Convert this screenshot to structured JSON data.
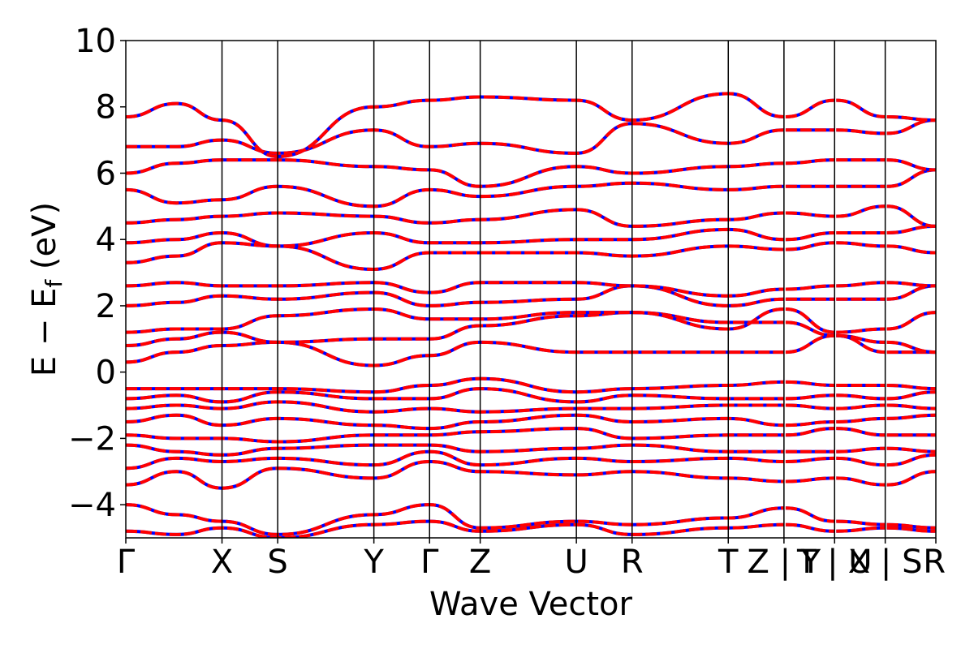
{
  "chart_data": {
    "type": "line",
    "xlabel": "Wave Vector",
    "ylabel": "E − E",
    "ylabel_sub": "f",
    "ylabel_unit": " (eV)",
    "ylim": [
      -5,
      10
    ],
    "yticks": [
      -4,
      -2,
      0,
      2,
      4,
      6,
      8,
      10
    ],
    "ytick_labels": [
      "−4",
      "−2",
      "0",
      "2",
      "4",
      "6",
      "8",
      "10"
    ],
    "xlim": [
      0,
      16
    ],
    "kpoints": [
      {
        "label": "Γ",
        "x": 0
      },
      {
        "label": "X",
        "x": 1.9
      },
      {
        "label": "S",
        "x": 3.0
      },
      {
        "label": "Y",
        "x": 4.9
      },
      {
        "label": "Γ",
        "x": 6.0
      },
      {
        "label": "Z",
        "x": 7.0
      },
      {
        "label": "U",
        "x": 8.9
      },
      {
        "label": "R",
        "x": 10.0
      },
      {
        "label": "T",
        "x": 11.9
      },
      {
        "label": "Z | Y",
        "x": 13.0
      },
      {
        "label": "T | U",
        "x": 14.0
      },
      {
        "label": "X | S",
        "x": 15.0
      },
      {
        "label": "R",
        "x": 16.0
      }
    ],
    "segment_breaks": [
      13.0,
      14.0,
      15.0
    ],
    "series_styles": {
      "primary": "#ff0000",
      "secondary": "#0000ff"
    },
    "bands": [
      {
        "x": [
          0,
          1,
          1.9,
          3,
          4.9,
          6,
          7,
          8.9,
          10,
          11.9,
          13,
          14,
          15,
          16
        ],
        "y": [
          -4.8,
          -4.9,
          -4.7,
          -5.0,
          -4.6,
          -4.5,
          -4.8,
          -4.6,
          -4.9,
          -4.7,
          -4.6,
          -4.8,
          -4.7,
          -4.8
        ]
      },
      {
        "x": [
          0,
          1,
          1.9,
          3,
          4.9,
          6,
          7,
          8.9,
          10,
          11.9,
          13,
          14,
          15,
          16
        ],
        "y": [
          -4.0,
          -4.3,
          -4.5,
          -4.9,
          -4.3,
          -4.0,
          -4.7,
          -4.5,
          -4.6,
          -4.4,
          -4.1,
          -4.5,
          -4.6,
          -4.7
        ]
      },
      {
        "x": [
          0,
          1,
          1.9,
          3,
          4.9,
          6,
          7,
          8.9,
          10,
          11.9,
          13,
          14,
          15,
          16
        ],
        "y": [
          -3.4,
          -3.0,
          -3.5,
          -2.9,
          -3.2,
          -2.7,
          -3.0,
          -3.1,
          -3.0,
          -3.2,
          -3.3,
          -3.2,
          -3.4,
          -3.0
        ]
      },
      {
        "x": [
          0,
          1,
          1.9,
          3,
          4.9,
          6,
          7,
          8.9,
          10,
          11.9,
          13,
          14,
          15,
          16
        ],
        "y": [
          -2.9,
          -2.6,
          -2.7,
          -2.6,
          -2.8,
          -2.4,
          -2.8,
          -2.6,
          -2.7,
          -2.6,
          -2.7,
          -2.6,
          -2.8,
          -2.5
        ]
      },
      {
        "x": [
          0,
          1,
          1.9,
          3,
          4.9,
          6,
          7,
          8.9,
          10,
          11.9,
          13,
          14,
          15,
          16
        ],
        "y": [
          -2.2,
          -2.4,
          -2.5,
          -2.3,
          -2.2,
          -2.2,
          -2.4,
          -2.3,
          -2.2,
          -2.4,
          -2.4,
          -2.4,
          -2.3,
          -2.4
        ]
      },
      {
        "x": [
          0,
          1,
          1.9,
          3,
          4.9,
          6,
          7,
          8.9,
          10,
          11.9,
          13,
          14,
          15,
          16
        ],
        "y": [
          -1.9,
          -2.0,
          -2.0,
          -2.1,
          -1.9,
          -1.9,
          -1.8,
          -1.7,
          -2.0,
          -1.9,
          -1.9,
          -1.7,
          -1.9,
          -1.9
        ]
      },
      {
        "x": [
          0,
          1,
          1.9,
          3,
          4.9,
          6,
          7,
          8.9,
          10,
          11.9,
          13,
          14,
          15,
          16
        ],
        "y": [
          -1.5,
          -1.3,
          -1.6,
          -1.4,
          -1.6,
          -1.7,
          -1.5,
          -1.3,
          -1.5,
          -1.4,
          -1.6,
          -1.5,
          -1.4,
          -1.3
        ]
      },
      {
        "x": [
          0,
          1,
          1.9,
          3,
          4.9,
          6,
          7,
          8.9,
          10,
          11.9,
          13,
          14,
          15,
          16
        ],
        "y": [
          -1.1,
          -1.0,
          -1.1,
          -0.9,
          -1.2,
          -1.1,
          -1.2,
          -1.1,
          -1.1,
          -1.0,
          -1.0,
          -1.1,
          -1.0,
          -1.1
        ]
      },
      {
        "x": [
          0,
          1,
          1.9,
          3,
          4.9,
          6,
          7,
          8.9,
          10,
          11.9,
          13,
          14,
          15,
          16
        ],
        "y": [
          -0.8,
          -0.7,
          -0.9,
          -0.6,
          -0.8,
          -0.8,
          -0.5,
          -0.9,
          -0.7,
          -0.8,
          -0.8,
          -0.7,
          -0.8,
          -0.6
        ]
      },
      {
        "x": [
          0,
          1,
          1.9,
          3,
          4.9,
          6,
          7,
          8.9,
          10,
          11.9,
          13,
          14,
          15,
          16
        ],
        "y": [
          -0.5,
          -0.5,
          -0.5,
          -0.5,
          -0.6,
          -0.4,
          -0.2,
          -0.6,
          -0.5,
          -0.4,
          -0.3,
          -0.4,
          -0.4,
          -0.5
        ]
      },
      {
        "x": [
          0,
          1,
          1.9,
          3,
          4.9,
          6,
          7,
          8.9,
          10,
          11.9,
          13,
          14,
          15,
          16
        ],
        "y": [
          0.3,
          0.6,
          0.8,
          0.9,
          0.2,
          0.5,
          0.9,
          0.6,
          0.6,
          0.6,
          0.6,
          1.1,
          0.6,
          0.6
        ]
      },
      {
        "x": [
          0,
          1,
          1.9,
          3,
          4.9,
          6,
          7,
          8.9,
          10,
          11.9,
          13,
          14,
          15,
          16
        ],
        "y": [
          0.8,
          1.0,
          1.2,
          0.9,
          1.0,
          1.0,
          1.4,
          1.7,
          1.8,
          1.5,
          1.5,
          1.1,
          0.9,
          0.6
        ]
      },
      {
        "x": [
          0,
          1,
          1.9,
          3,
          4.9,
          6,
          7,
          8.9,
          10,
          11.9,
          13,
          14,
          15,
          16
        ],
        "y": [
          1.2,
          1.3,
          1.3,
          1.7,
          1.9,
          1.6,
          1.6,
          1.8,
          1.8,
          1.3,
          1.9,
          1.2,
          1.3,
          1.8
        ]
      },
      {
        "x": [
          0,
          1,
          1.9,
          3,
          4.9,
          6,
          7,
          8.9,
          10,
          11.9,
          13,
          14,
          15,
          16
        ],
        "y": [
          2.0,
          2.1,
          2.3,
          2.2,
          2.4,
          2.0,
          2.1,
          2.2,
          2.6,
          2.0,
          2.2,
          2.2,
          2.2,
          2.6
        ]
      },
      {
        "x": [
          0,
          1,
          1.9,
          3,
          4.9,
          6,
          7,
          8.9,
          10,
          11.9,
          13,
          14,
          15,
          16
        ],
        "y": [
          2.6,
          2.7,
          2.6,
          2.6,
          2.7,
          2.4,
          2.7,
          2.7,
          2.6,
          2.3,
          2.5,
          2.6,
          2.7,
          2.6
        ]
      },
      {
        "x": [
          0,
          1,
          1.9,
          3,
          4.9,
          6,
          7,
          8.9,
          10,
          11.9,
          13,
          14,
          15,
          16
        ],
        "y": [
          3.3,
          3.5,
          3.9,
          3.8,
          3.1,
          3.6,
          3.6,
          3.6,
          3.5,
          3.8,
          3.7,
          3.9,
          3.8,
          3.6
        ]
      },
      {
        "x": [
          0,
          1,
          1.9,
          3,
          4.9,
          6,
          7,
          8.9,
          10,
          11.9,
          13,
          14,
          15,
          16
        ],
        "y": [
          3.9,
          4.0,
          4.2,
          3.8,
          4.2,
          3.9,
          3.9,
          4.0,
          4.0,
          4.3,
          4.0,
          4.2,
          4.2,
          4.4
        ]
      },
      {
        "x": [
          0,
          1,
          1.9,
          3,
          4.9,
          6,
          7,
          8.9,
          10,
          11.9,
          13,
          14,
          15,
          16
        ],
        "y": [
          4.5,
          4.6,
          4.7,
          4.8,
          4.7,
          4.5,
          4.6,
          4.9,
          4.4,
          4.6,
          4.8,
          4.7,
          5.0,
          4.4
        ]
      },
      {
        "x": [
          0,
          1,
          1.9,
          3,
          4.9,
          6,
          7,
          8.9,
          10,
          11.9,
          13,
          14,
          15,
          16
        ],
        "y": [
          5.5,
          5.1,
          5.2,
          5.6,
          5.0,
          5.5,
          5.3,
          5.6,
          5.7,
          5.5,
          5.6,
          5.6,
          5.6,
          6.1
        ]
      },
      {
        "x": [
          0,
          1,
          1.9,
          3,
          4.9,
          6,
          7,
          8.9,
          10,
          11.9,
          13,
          14,
          15,
          16
        ],
        "y": [
          6.0,
          6.3,
          6.4,
          6.4,
          6.2,
          6.1,
          5.6,
          6.2,
          6.0,
          6.2,
          6.3,
          6.4,
          6.4,
          6.1
        ]
      },
      {
        "x": [
          0,
          1,
          1.9,
          3,
          4.9,
          6,
          7,
          8.9,
          10,
          11.9,
          13,
          14,
          15,
          16
        ],
        "y": [
          6.8,
          6.8,
          7.0,
          6.6,
          7.3,
          6.8,
          6.9,
          6.6,
          7.5,
          6.9,
          7.3,
          7.3,
          7.2,
          7.6
        ]
      },
      {
        "x": [
          0,
          1,
          1.9,
          3,
          4.9,
          6,
          7,
          8.9,
          10,
          11.9,
          13,
          14,
          15,
          16
        ],
        "y": [
          7.7,
          8.1,
          7.6,
          6.5,
          8.0,
          8.2,
          8.3,
          8.2,
          7.6,
          8.4,
          7.7,
          8.2,
          7.7,
          7.6
        ]
      }
    ]
  }
}
